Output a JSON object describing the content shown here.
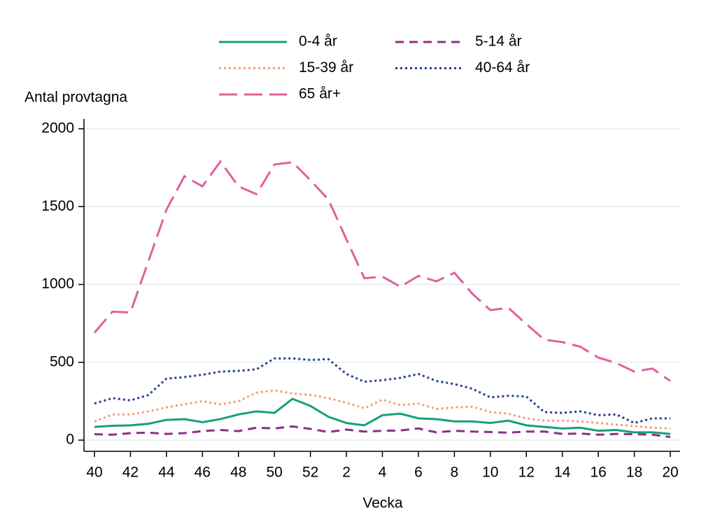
{
  "chart_data": {
    "type": "line",
    "y_label": "Antal provtagna",
    "x_label": "Vecka",
    "categories": [
      "40",
      null,
      "42",
      null,
      "44",
      null,
      "46",
      null,
      "48",
      null,
      "50",
      null,
      "52",
      null,
      "2",
      null,
      "4",
      null,
      "6",
      null,
      "8",
      null,
      "10",
      null,
      "12",
      null,
      "14",
      null,
      "16",
      null,
      "18",
      null,
      "20"
    ],
    "ylim": [
      0,
      2000
    ],
    "yticks": [
      0,
      500,
      1000,
      1500,
      2000
    ],
    "grid": true,
    "series": [
      {
        "name": "0-4 år",
        "color": "#16a079",
        "dash": "solid",
        "values": [
          85,
          92,
          95,
          105,
          130,
          135,
          115,
          135,
          165,
          185,
          175,
          265,
          220,
          150,
          110,
          95,
          160,
          170,
          140,
          135,
          120,
          120,
          110,
          125,
          95,
          85,
          75,
          80,
          60,
          65,
          50,
          50,
          40
        ]
      },
      {
        "name": "5-14 år",
        "color": "#8b2f8b",
        "dash": "dashed",
        "values": [
          38,
          35,
          45,
          48,
          40,
          45,
          58,
          65,
          58,
          80,
          75,
          88,
          72,
          52,
          68,
          55,
          60,
          62,
          75,
          50,
          60,
          55,
          52,
          48,
          55,
          55,
          40,
          42,
          35,
          40,
          38,
          35,
          20
        ]
      },
      {
        "name": "15-39 år",
        "color": "#f0a07a",
        "dash": "dotted",
        "values": [
          120,
          165,
          165,
          185,
          210,
          230,
          250,
          230,
          250,
          305,
          320,
          300,
          290,
          270,
          240,
          205,
          260,
          225,
          235,
          200,
          210,
          215,
          180,
          170,
          140,
          125,
          125,
          120,
          110,
          100,
          90,
          80,
          75
        ]
      },
      {
        "name": "40-64 år",
        "color": "#24418e",
        "dash": "dotted",
        "values": [
          235,
          270,
          255,
          290,
          395,
          405,
          420,
          440,
          445,
          455,
          525,
          525,
          515,
          520,
          425,
          375,
          385,
          400,
          425,
          380,
          360,
          330,
          275,
          285,
          280,
          180,
          175,
          185,
          160,
          165,
          110,
          140,
          140
        ]
      },
      {
        "name": "65 år+",
        "color": "#e2609e",
        "dash": "longdash",
        "values": [
          690,
          825,
          820,
          1150,
          1480,
          1695,
          1630,
          1790,
          1630,
          1580,
          1770,
          1785,
          1670,
          1545,
          1290,
          1040,
          1050,
          985,
          1055,
          1020,
          1075,
          940,
          835,
          850,
          745,
          645,
          630,
          600,
          530,
          495,
          440,
          460,
          380
        ]
      }
    ]
  }
}
